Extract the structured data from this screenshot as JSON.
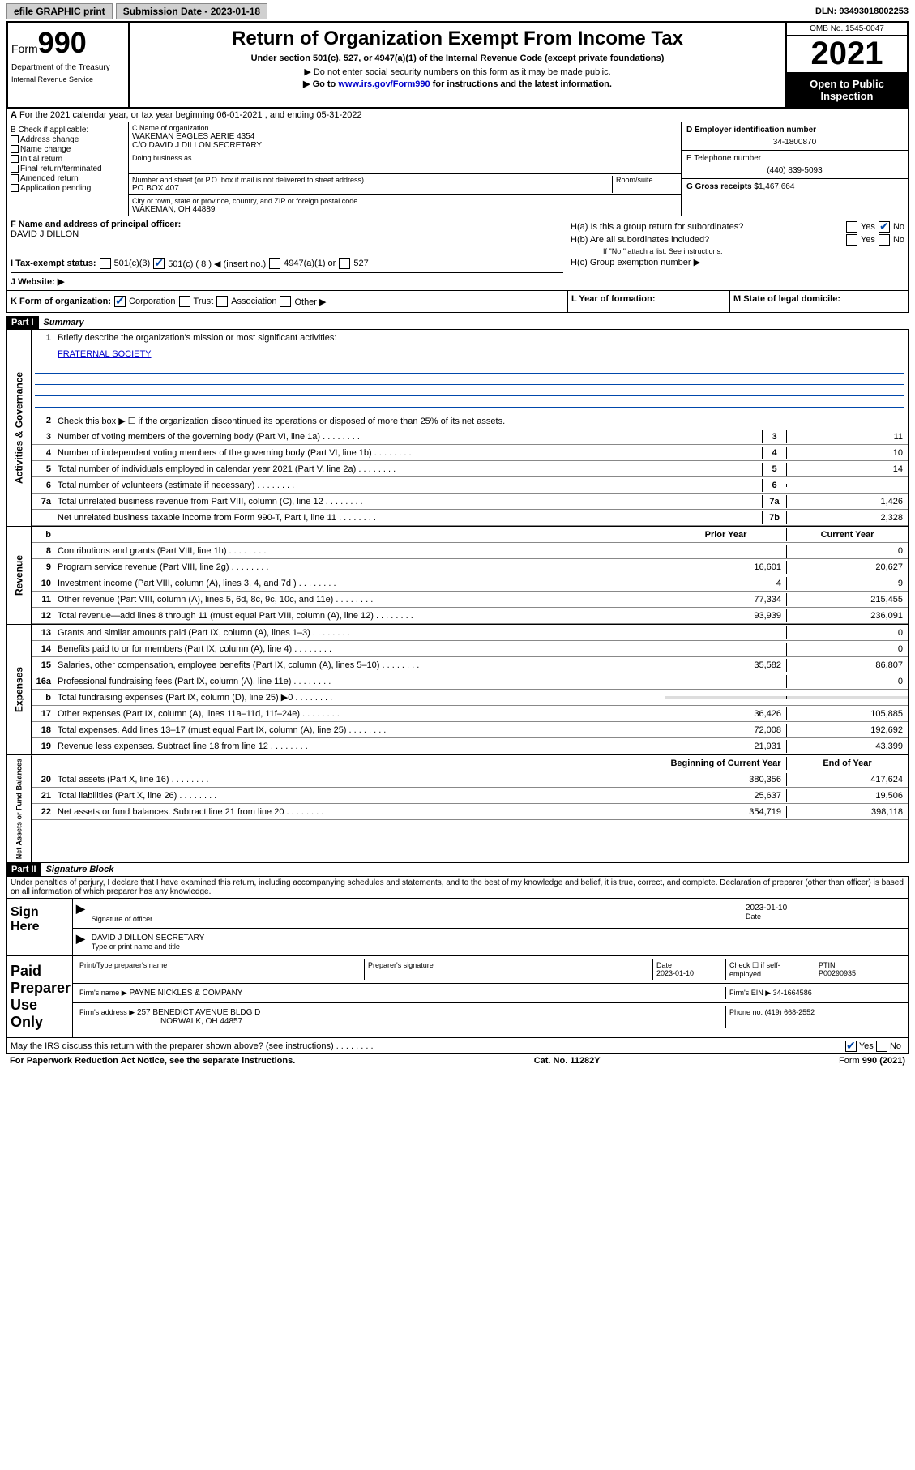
{
  "topbar": {
    "efile": "efile GRAPHIC print",
    "sub_label": "Submission Date - 2023-01-18",
    "dln": "DLN: 93493018002253"
  },
  "header": {
    "form_prefix": "Form",
    "form_num": "990",
    "dept": "Department of the Treasury",
    "irs": "Internal Revenue Service",
    "title": "Return of Organization Exempt From Income Tax",
    "subtitle": "Under section 501(c), 527, or 4947(a)(1) of the Internal Revenue Code (except private foundations)",
    "note1": "▶ Do not enter social security numbers on this form as it may be made public.",
    "note2_pre": "▶ Go to ",
    "note2_link": "www.irs.gov/Form990",
    "note2_post": " for instructions and the latest information.",
    "omb": "OMB No. 1545-0047",
    "year": "2021",
    "open": "Open to Public Inspection"
  },
  "row_a": {
    "label": "A",
    "text": "For the 2021 calendar year, or tax year beginning 06-01-2021    , and ending 05-31-2022"
  },
  "section_b": {
    "label": "B Check if applicable:",
    "opts": [
      "Address change",
      "Name change",
      "Initial return",
      "Final return/terminated",
      "Amended return",
      "Application pending"
    ]
  },
  "section_c": {
    "name_label": "C Name of organization",
    "name1": "WAKEMAN EAGLES AERIE 4354",
    "name2": "C/O DAVID J DILLON SECRETARY",
    "dba": "Doing business as",
    "addr_label": "Number and street (or P.O. box if mail is not delivered to street address)",
    "room": "Room/suite",
    "addr": "PO BOX 407",
    "city_label": "City or town, state or province, country, and ZIP or foreign postal code",
    "city": "WAKEMAN, OH  44889"
  },
  "section_d": {
    "ein_label": "D Employer identification number",
    "ein": "34-1800870",
    "tel_label": "E Telephone number",
    "tel": "(440) 839-5093",
    "gross_label": "G Gross receipts $",
    "gross": "1,467,664"
  },
  "section_f": {
    "label": "F  Name and address of principal officer:",
    "name": "DAVID J DILLON"
  },
  "section_h": {
    "ha": "H(a)  Is this a group return for subordinates?",
    "hb": "H(b)  Are all subordinates included?",
    "hb_note": "If \"No,\" attach a list. See instructions.",
    "hc": "H(c)  Group exemption number ▶",
    "yes": "Yes",
    "no": "No"
  },
  "section_i": {
    "label": "I   Tax-exempt status:",
    "opts": [
      "501(c)(3)",
      "501(c) ( 8 ) ◀ (insert no.)",
      "4947(a)(1) or",
      "527"
    ]
  },
  "section_j": {
    "label": "J   Website: ▶"
  },
  "section_k": {
    "label": "K Form of organization:",
    "opts": [
      "Corporation",
      "Trust",
      "Association",
      "Other ▶"
    ]
  },
  "section_l": {
    "label": "L Year of formation:"
  },
  "section_m": {
    "label": "M State of legal domicile:"
  },
  "part1": {
    "hdr": "Part I",
    "title": "Summary",
    "tabs": [
      "Activities & Governance",
      "Revenue",
      "Expenses",
      "Net Assets or Fund Balances"
    ],
    "l1_label": "Briefly describe the organization's mission or most significant activities:",
    "l1_val": "FRATERNAL SOCIETY",
    "l2": "Check this box ▶ ☐  if the organization discontinued its operations or disposed of more than 25% of its net assets.",
    "lines_gov": [
      {
        "n": "3",
        "t": "Number of voting members of the governing body (Part VI, line 1a)",
        "box": "3",
        "v": "11"
      },
      {
        "n": "4",
        "t": "Number of independent voting members of the governing body (Part VI, line 1b)",
        "box": "4",
        "v": "10"
      },
      {
        "n": "5",
        "t": "Total number of individuals employed in calendar year 2021 (Part V, line 2a)",
        "box": "5",
        "v": "14"
      },
      {
        "n": "6",
        "t": "Total number of volunteers (estimate if necessary)",
        "box": "6",
        "v": ""
      },
      {
        "n": "7a",
        "t": "Total unrelated business revenue from Part VIII, column (C), line 12",
        "box": "7a",
        "v": "1,426"
      },
      {
        "n": "",
        "t": "Net unrelated business taxable income from Form 990-T, Part I, line 11",
        "box": "7b",
        "v": "2,328"
      }
    ],
    "col_hdrs": {
      "b": "b",
      "prior": "Prior Year",
      "current": "Current Year"
    },
    "lines_rev": [
      {
        "n": "8",
        "t": "Contributions and grants (Part VIII, line 1h)",
        "p": "",
        "c": "0"
      },
      {
        "n": "9",
        "t": "Program service revenue (Part VIII, line 2g)",
        "p": "16,601",
        "c": "20,627"
      },
      {
        "n": "10",
        "t": "Investment income (Part VIII, column (A), lines 3, 4, and 7d )",
        "p": "4",
        "c": "9"
      },
      {
        "n": "11",
        "t": "Other revenue (Part VIII, column (A), lines 5, 6d, 8c, 9c, 10c, and 11e)",
        "p": "77,334",
        "c": "215,455"
      },
      {
        "n": "12",
        "t": "Total revenue—add lines 8 through 11 (must equal Part VIII, column (A), line 12)",
        "p": "93,939",
        "c": "236,091"
      }
    ],
    "lines_exp": [
      {
        "n": "13",
        "t": "Grants and similar amounts paid (Part IX, column (A), lines 1–3)",
        "p": "",
        "c": "0"
      },
      {
        "n": "14",
        "t": "Benefits paid to or for members (Part IX, column (A), line 4)",
        "p": "",
        "c": "0"
      },
      {
        "n": "15",
        "t": "Salaries, other compensation, employee benefits (Part IX, column (A), lines 5–10)",
        "p": "35,582",
        "c": "86,807"
      },
      {
        "n": "16a",
        "t": "Professional fundraising fees (Part IX, column (A), line 11e)",
        "p": "",
        "c": "0"
      },
      {
        "n": "b",
        "t": "Total fundraising expenses (Part IX, column (D), line 25) ▶0",
        "p": "",
        "c": "",
        "grey": true
      },
      {
        "n": "17",
        "t": "Other expenses (Part IX, column (A), lines 11a–11d, 11f–24e)",
        "p": "36,426",
        "c": "105,885"
      },
      {
        "n": "18",
        "t": "Total expenses. Add lines 13–17 (must equal Part IX, column (A), line 25)",
        "p": "72,008",
        "c": "192,692"
      },
      {
        "n": "19",
        "t": "Revenue less expenses. Subtract line 18 from line 12",
        "p": "21,931",
        "c": "43,399"
      }
    ],
    "net_hdrs": {
      "beg": "Beginning of Current Year",
      "end": "End of Year"
    },
    "lines_net": [
      {
        "n": "20",
        "t": "Total assets (Part X, line 16)",
        "p": "380,356",
        "c": "417,624"
      },
      {
        "n": "21",
        "t": "Total liabilities (Part X, line 26)",
        "p": "25,637",
        "c": "19,506"
      },
      {
        "n": "22",
        "t": "Net assets or fund balances. Subtract line 21 from line 20",
        "p": "354,719",
        "c": "398,118"
      }
    ]
  },
  "part2": {
    "hdr": "Part II",
    "title": "Signature Block",
    "decl": "Under penalties of perjury, I declare that I have examined this return, including accompanying schedules and statements, and to the best of my knowledge and belief, it is true, correct, and complete. Declaration of preparer (other than officer) is based on all information of which preparer has any knowledge.",
    "sign_here": "Sign Here",
    "sig_officer": "Signature of officer",
    "date": "Date",
    "date_val": "2023-01-10",
    "officer_name": "DAVID J DILLON  SECRETARY",
    "type_name": "Type or print name and title",
    "paid": "Paid Preparer Use Only",
    "prep_name_lbl": "Print/Type preparer's name",
    "prep_sig_lbl": "Preparer's signature",
    "prep_date": "2023-01-10",
    "check_if": "Check ☐ if self-employed",
    "ptin_lbl": "PTIN",
    "ptin": "P00290935",
    "firm_name_lbl": "Firm's name     ▶",
    "firm_name": "PAYNE NICKLES & COMPANY",
    "firm_ein_lbl": "Firm's EIN ▶",
    "firm_ein": "34-1664586",
    "firm_addr_lbl": "Firm's address ▶",
    "firm_addr1": "257 BENEDICT AVENUE BLDG D",
    "firm_addr2": "NORWALK, OH  44857",
    "phone_lbl": "Phone no.",
    "phone": "(419) 668-2552",
    "discuss": "May the IRS discuss this return with the preparer shown above? (see instructions)"
  },
  "footer": {
    "pra": "For Paperwork Reduction Act Notice, see the separate instructions.",
    "cat": "Cat. No. 11282Y",
    "form": "Form 990 (2021)"
  }
}
